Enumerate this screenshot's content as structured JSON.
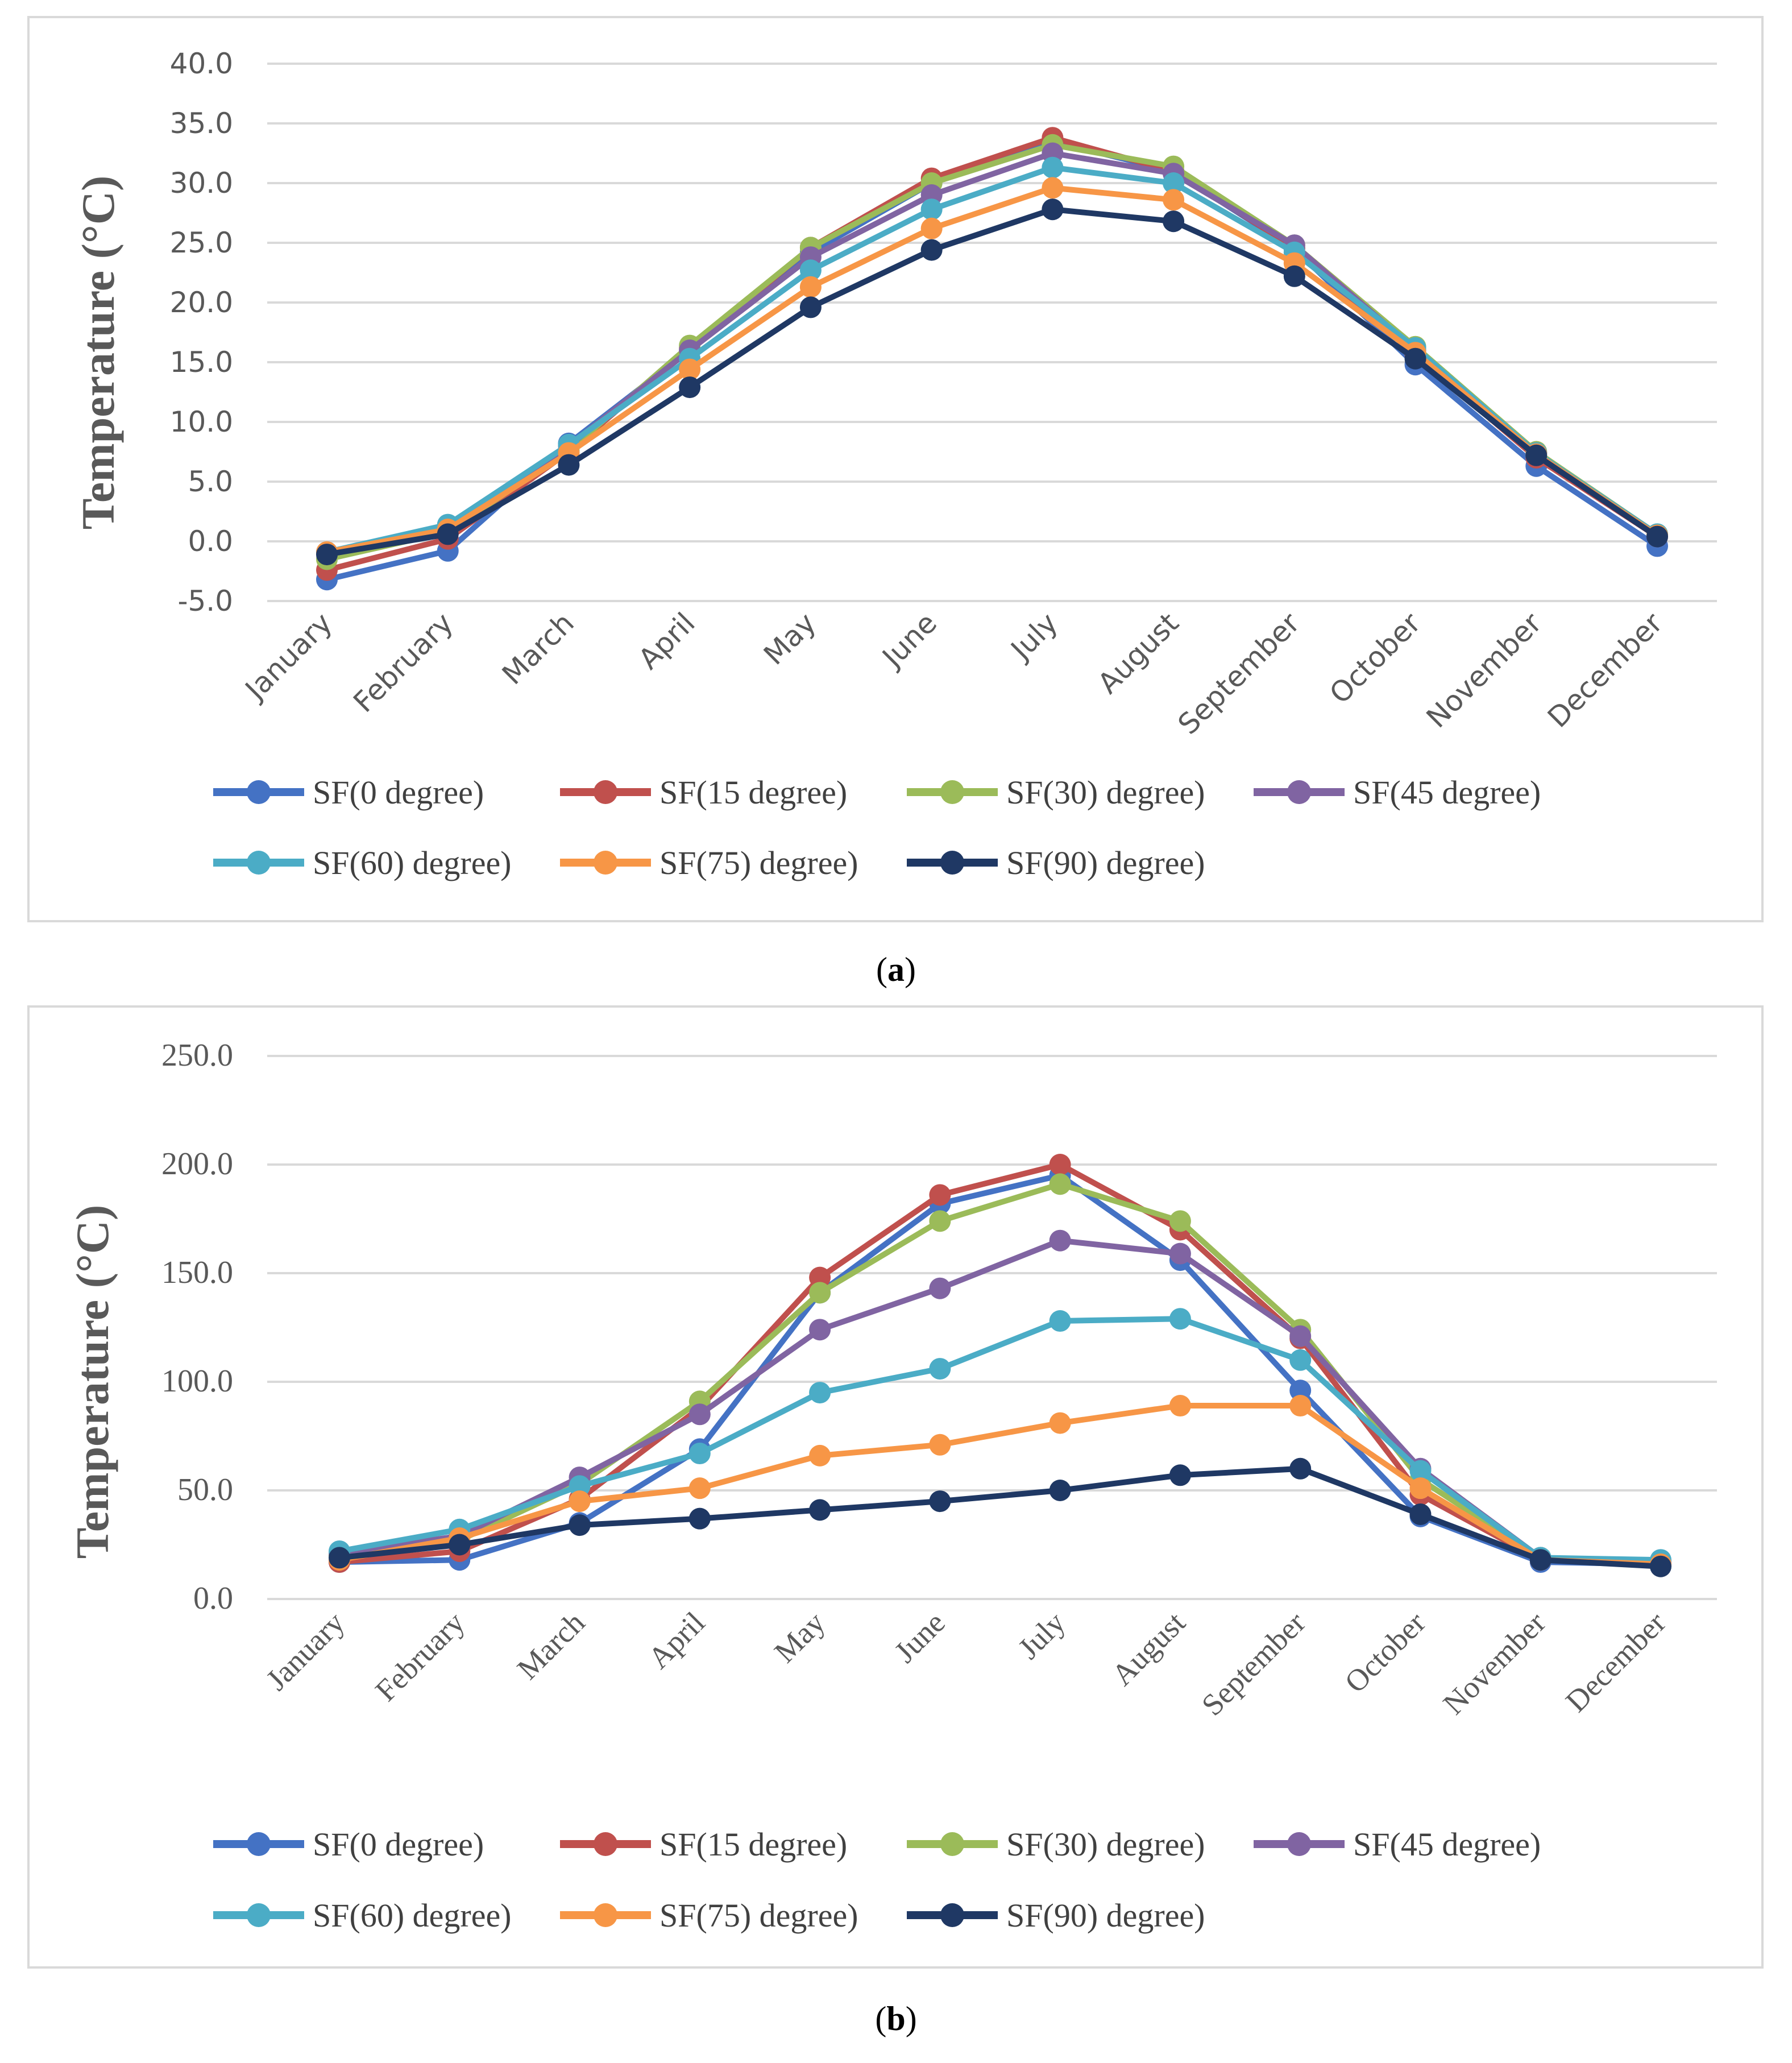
{
  "captions": {
    "a": {
      "open": "(",
      "letter": "a",
      "close": ")"
    },
    "b": {
      "open": "(",
      "letter": "b",
      "close": ")"
    }
  },
  "chart_data": [
    {
      "type": "line",
      "panel": "a",
      "title": "",
      "ylabel": "Temperature (°C)",
      "xlabel": "",
      "categories": [
        "January",
        "February",
        "March",
        "April",
        "May",
        "June",
        "July",
        "August",
        "September",
        "October",
        "November",
        "December"
      ],
      "ylim": [
        -5,
        40
      ],
      "yticks": [
        -5,
        0,
        5,
        10,
        15,
        20,
        25,
        30,
        35,
        40
      ],
      "ytick_labels": [
        "-5.0",
        "0.0",
        "5.0",
        "10.0",
        "15.0",
        "20.0",
        "25.0",
        "30.0",
        "35.0",
        "40.0"
      ],
      "grid": true,
      "legend_position": "bottom",
      "series": [
        {
          "name": "SF(0 degree)",
          "color": "#4472C4",
          "values": [
            -3.2,
            -0.8,
            8.2,
            16.0,
            24.2,
            30.0,
            33.5,
            31.0,
            24.5,
            14.8,
            6.3,
            -0.4
          ]
        },
        {
          "name": "SF(15 degree)",
          "color": "#C0504D",
          "values": [
            -2.4,
            0.2,
            7.5,
            16.2,
            24.6,
            30.4,
            33.8,
            31.0,
            24.6,
            15.6,
            7.0,
            0.4
          ]
        },
        {
          "name": "SF(30) degree)",
          "color": "#9BBB59",
          "values": [
            -1.5,
            0.8,
            7.6,
            16.4,
            24.6,
            30.0,
            33.2,
            31.4,
            24.8,
            16.3,
            7.5,
            0.6
          ]
        },
        {
          "name": "SF(45 degree)",
          "color": "#8064A2",
          "values": [
            -1.0,
            1.0,
            8.0,
            16.0,
            23.8,
            29.0,
            32.5,
            30.8,
            24.8,
            16.0,
            7.4,
            0.5
          ]
        },
        {
          "name": "SF(60) degree)",
          "color": "#4BACC6",
          "values": [
            -0.9,
            1.4,
            8.1,
            15.3,
            22.7,
            27.8,
            31.3,
            30.0,
            24.2,
            16.2,
            7.4,
            0.6
          ]
        },
        {
          "name": "SF(75) degree)",
          "color": "#F79646",
          "values": [
            -0.9,
            1.0,
            7.4,
            14.4,
            21.3,
            26.2,
            29.6,
            28.6,
            23.3,
            15.8,
            7.3,
            0.5
          ]
        },
        {
          "name": "SF(90) degree)",
          "color": "#1F3864",
          "values": [
            -1.1,
            0.6,
            6.4,
            12.9,
            19.6,
            24.4,
            27.8,
            26.8,
            22.2,
            15.3,
            7.2,
            0.4
          ]
        }
      ]
    },
    {
      "type": "line",
      "panel": "b",
      "title": "",
      "ylabel": "Temperature (°C)",
      "xlabel": "",
      "categories": [
        "January",
        "February",
        "March",
        "April",
        "May",
        "June",
        "July",
        "August",
        "September",
        "October",
        "November",
        "December"
      ],
      "ylim": [
        0,
        250
      ],
      "yticks": [
        0,
        50,
        100,
        150,
        200,
        250
      ],
      "ytick_labels": [
        "0.0",
        "50.0",
        "100.0",
        "150.0",
        "200.0",
        "250.0"
      ],
      "grid": true,
      "legend_position": "bottom",
      "series": [
        {
          "name": "SF(0 degree)",
          "color": "#4472C4",
          "values": [
            17,
            18,
            35,
            69,
            141,
            182,
            195,
            156,
            96,
            38,
            17,
            16
          ]
        },
        {
          "name": "SF(15 degree)",
          "color": "#C0504D",
          "values": [
            17,
            22,
            46,
            88,
            148,
            186,
            200,
            170,
            120,
            48,
            18,
            16
          ]
        },
        {
          "name": "SF(30) degree)",
          "color": "#9BBB59",
          "values": [
            20,
            27,
            53,
            91,
            141,
            174,
            191,
            174,
            124,
            55,
            19,
            16
          ]
        },
        {
          "name": "SF(45 degree)",
          "color": "#8064A2",
          "values": [
            21,
            29,
            56,
            85,
            124,
            143,
            165,
            159,
            121,
            60,
            19,
            17
          ]
        },
        {
          "name": "SF(60) degree)",
          "color": "#4BACC6",
          "values": [
            22,
            32,
            52,
            67,
            95,
            106,
            128,
            129,
            110,
            59,
            19,
            18
          ]
        },
        {
          "name": "SF(75) degree)",
          "color": "#F79646",
          "values": [
            18,
            28,
            45,
            51,
            66,
            71,
            81,
            89,
            89,
            51,
            18,
            16
          ]
        },
        {
          "name": "SF(90) degree)",
          "color": "#1F3864",
          "values": [
            19,
            25,
            34,
            37,
            41,
            45,
            50,
            57,
            60,
            39,
            18,
            15
          ]
        }
      ]
    }
  ]
}
